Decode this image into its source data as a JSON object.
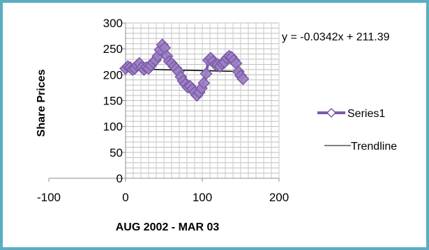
{
  "chart_data": {
    "type": "scatter",
    "title": "",
    "xlabel": "AUG 2002 - MAR 03",
    "ylabel": "Share Prices",
    "xlim": [
      -100,
      200
    ],
    "ylim": [
      0,
      300
    ],
    "x_ticks": [
      -100,
      0,
      100,
      200
    ],
    "y_ticks": [
      0,
      50,
      100,
      150,
      200,
      250,
      300
    ],
    "y_minor_step": 10,
    "x_minor_step": 10,
    "grid": true,
    "legend_position": "right",
    "series": [
      {
        "name": "Series1",
        "color": "#7b5aa6",
        "marker": "diamond",
        "x": [
          0,
          3,
          6,
          9,
          12,
          15,
          18,
          21,
          24,
          27,
          30,
          33,
          36,
          39,
          42,
          45,
          48,
          51,
          54,
          57,
          60,
          63,
          66,
          69,
          72,
          75,
          78,
          81,
          84,
          87,
          90,
          93,
          96,
          99,
          102,
          105,
          108,
          111,
          114,
          117,
          120,
          123,
          126,
          129,
          132,
          135,
          138,
          141,
          144,
          147,
          150,
          153
        ],
        "y": [
          212,
          216,
          214,
          210,
          212,
          218,
          222,
          214,
          210,
          214,
          212,
          218,
          224,
          228,
          236,
          248,
          258,
          252,
          236,
          226,
          222,
          216,
          212,
          206,
          196,
          188,
          182,
          176,
          178,
          172,
          166,
          160,
          166,
          174,
          184,
          202,
          228,
          232,
          226,
          220,
          220,
          216,
          222,
          224,
          232,
          236,
          234,
          228,
          222,
          206,
          198,
          192
        ]
      }
    ],
    "trendline": {
      "name": "Trendline",
      "equation": "y = -0.0342x + 211.39",
      "slope": -0.0342,
      "intercept": 211.39,
      "x_range": [
        0,
        153
      ],
      "color": "#000000"
    }
  }
}
